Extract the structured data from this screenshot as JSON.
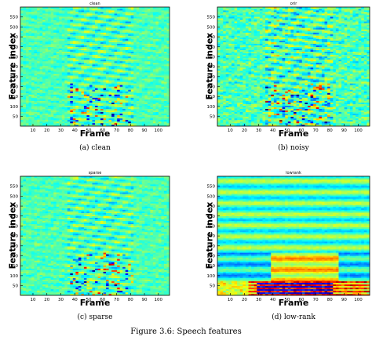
{
  "figure_caption": "Figure 3.6: Speech features",
  "colors": {
    "background": "#3fc8b7",
    "frame": "#000000"
  },
  "chart_data": [
    {
      "type": "heatmap",
      "title": "clean",
      "subcaption": "(a) clean",
      "xlabel": "Frame",
      "ylabel": "Feature index",
      "x_ticks": [
        10,
        20,
        30,
        40,
        50,
        60,
        70,
        80,
        90,
        100
      ],
      "y_ticks": [
        50,
        100,
        150,
        200,
        250,
        300,
        350,
        400,
        450,
        500,
        550
      ],
      "xlim": [
        1,
        108
      ],
      "ylim": [
        1,
        600
      ],
      "pattern": "sparse-activity"
    },
    {
      "type": "heatmap",
      "title": "orir",
      "subcaption": "(b) noisy",
      "xlabel": "Frame",
      "ylabel": "Feature index",
      "x_ticks": [
        10,
        20,
        30,
        40,
        50,
        60,
        70,
        80,
        90,
        100
      ],
      "y_ticks": [
        50,
        100,
        150,
        200,
        250,
        300,
        350,
        400,
        450,
        500,
        550
      ],
      "xlim": [
        1,
        108
      ],
      "ylim": [
        1,
        600
      ],
      "pattern": "noisy"
    },
    {
      "type": "heatmap",
      "title": "sparse",
      "subcaption": "(c) sparse",
      "xlabel": "Frame",
      "ylabel": "Feature index",
      "x_ticks": [
        10,
        20,
        30,
        40,
        50,
        60,
        70,
        80,
        90,
        100
      ],
      "y_ticks": [
        50,
        100,
        150,
        200,
        250,
        300,
        350,
        400,
        450,
        500,
        550
      ],
      "xlim": [
        1,
        108
      ],
      "ylim": [
        1,
        600
      ],
      "pattern": "sparse"
    },
    {
      "type": "heatmap",
      "title": "lowrank",
      "subcaption": "(d) low-rank",
      "xlabel": "Frame",
      "ylabel": "Feature index",
      "x_ticks": [
        10,
        20,
        30,
        40,
        50,
        60,
        70,
        80,
        90,
        100
      ],
      "y_ticks": [
        50,
        100,
        150,
        200,
        250,
        300,
        350,
        400,
        450,
        500,
        550
      ],
      "xlim": [
        1,
        108
      ],
      "ylim": [
        1,
        600
      ],
      "pattern": "lowrank"
    }
  ]
}
